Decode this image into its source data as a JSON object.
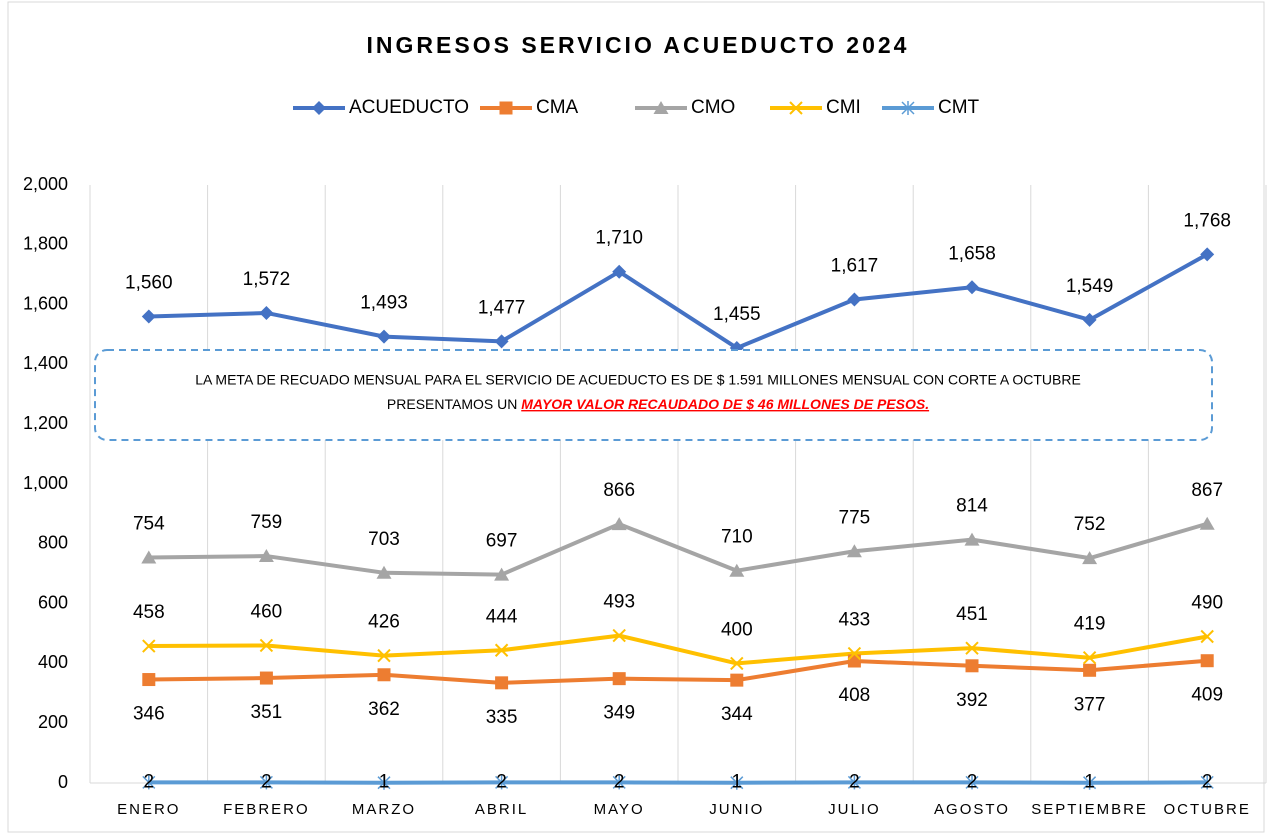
{
  "chart_data": {
    "type": "line",
    "title": "INGRESOS SERVICIO ACUEDUCTO 2024",
    "categories": [
      "ENERO",
      "FEBRERO",
      "MARZO",
      "ABRIL",
      "MAYO",
      "JUNIO",
      "JULIO",
      "AGOSTO",
      "SEPTIEMBRE",
      "OCTUBRE"
    ],
    "series": [
      {
        "name": "ACUEDUCTO",
        "color": "#4472c4",
        "marker": "diamond",
        "label_position": "above",
        "values": [
          1560,
          1572,
          1493,
          1477,
          1710,
          1455,
          1617,
          1658,
          1549,
          1768
        ],
        "value_labels": [
          "1,560",
          "1,572",
          "1,493",
          "1,477",
          "1,710",
          "1,455",
          "1,617",
          "1,658",
          "1,549",
          "1,768"
        ]
      },
      {
        "name": "CMA",
        "color": "#ed7d31",
        "marker": "square",
        "label_position": "below",
        "values": [
          346,
          351,
          362,
          335,
          349,
          344,
          408,
          392,
          377,
          409
        ]
      },
      {
        "name": "CMO",
        "color": "#a5a5a5",
        "marker": "triangle",
        "label_position": "above",
        "values": [
          754,
          759,
          703,
          697,
          866,
          710,
          775,
          814,
          752,
          867
        ]
      },
      {
        "name": "CMI",
        "color": "#ffc000",
        "marker": "x",
        "label_position": "above",
        "values": [
          458,
          460,
          426,
          444,
          493,
          400,
          433,
          451,
          419,
          490
        ]
      },
      {
        "name": "CMT",
        "color": "#5b9bd5",
        "marker": "asterisk",
        "label_position": "center",
        "values": [
          2,
          2,
          1,
          2,
          2,
          1,
          2,
          2,
          1,
          2
        ]
      }
    ],
    "ylim": [
      0,
      2000
    ],
    "yticks": [
      0,
      200,
      400,
      600,
      800,
      {
        "value": 1000,
        "label": "1,000"
      },
      {
        "value": 1200,
        "label": "1,200"
      },
      {
        "value": 1400,
        "label": "1,400"
      },
      {
        "value": 1600,
        "label": "1,600"
      },
      {
        "value": 1800,
        "label": "1,800"
      },
      {
        "value": 2000,
        "label": "2,000"
      }
    ],
    "vertical_grid": true,
    "legend": "top",
    "annotation": [
      "LA META DE RECUADO MENSUAL PARA EL SERVICIO DE ACUEDUCTO ES DE $ 1.591 MILLONES MENSUAL CON CORTE A OCTUBRE",
      "PRESENTAMOS UN ",
      "MAYOR VALOR RECAUDADO DE $ 46 MILLONES DE PESOS."
    ]
  }
}
